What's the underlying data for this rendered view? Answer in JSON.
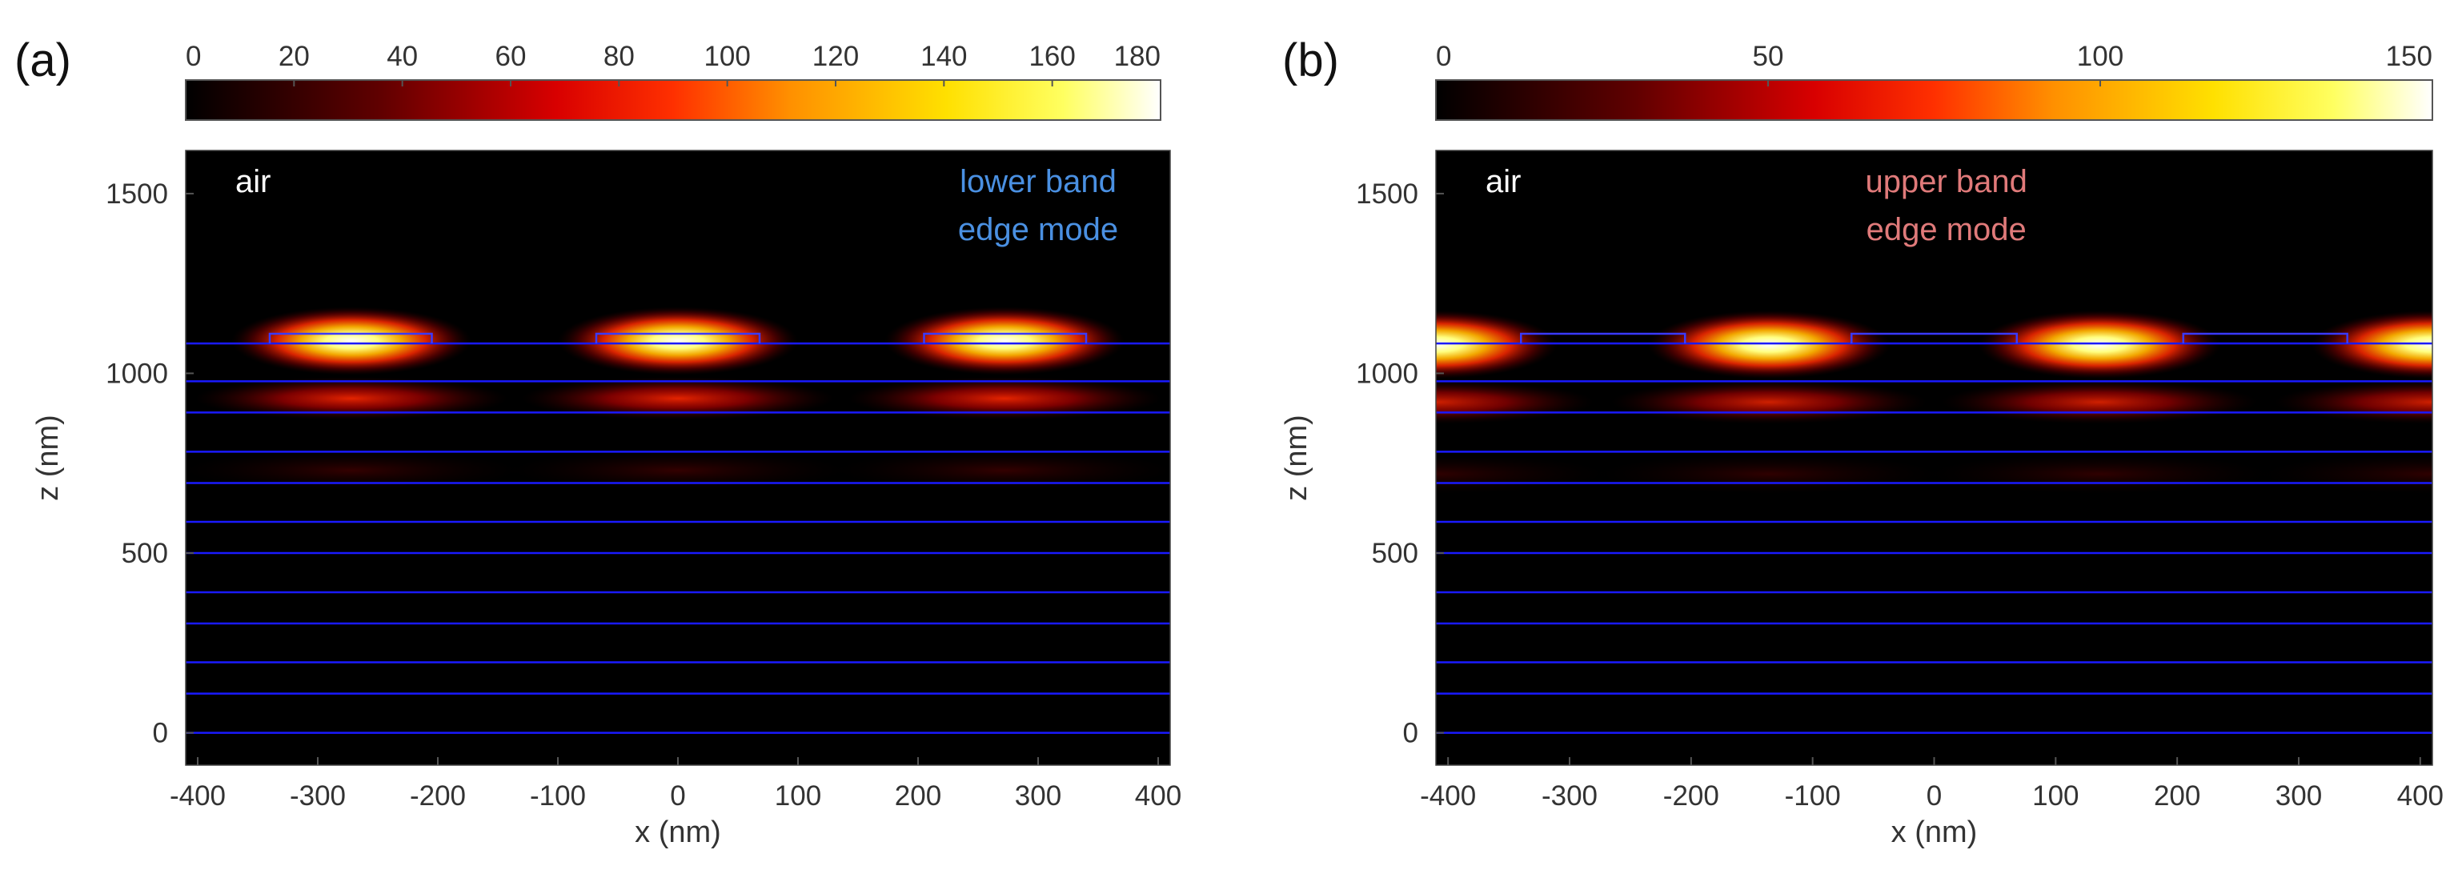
{
  "chart_data": [
    {
      "type": "heatmap",
      "panel_label": "(a)",
      "colorbar": {
        "ticks": [
          "0",
          "20",
          "40",
          "60",
          "80",
          "100",
          "120",
          "140",
          "160",
          "180"
        ],
        "min": 0,
        "max": 180,
        "colormap": "hot"
      },
      "xlabel": "x (nm)",
      "ylabel": "z (nm)",
      "xlim": [
        -410,
        410
      ],
      "ylim": [
        -90,
        1620
      ],
      "x_ticks": [
        "-400",
        "-300",
        "-200",
        "-100",
        "0",
        "100",
        "200",
        "300",
        "400"
      ],
      "y_ticks": [
        "0",
        "500",
        "1000",
        "1500"
      ],
      "annotations": {
        "medium": "air",
        "mode_line1": "lower band",
        "mode_line2": "edge mode",
        "mode_color": "#4a90e2"
      },
      "layer_interfaces_nm": [
        1083,
        978,
        891,
        782,
        695,
        587,
        500,
        391,
        304,
        196,
        109,
        0
      ],
      "grating_teeth_x_nm": [
        [
          -340,
          -205
        ],
        [
          -68,
          68
        ],
        [
          205,
          340
        ]
      ],
      "grating_top_nm": 1110,
      "field_hotspots": [
        {
          "x": -272,
          "z": 1090,
          "amplitude": 180
        },
        {
          "x": 0,
          "z": 1090,
          "amplitude": 180
        },
        {
          "x": 272,
          "z": 1090,
          "amplitude": 180
        },
        {
          "x": -272,
          "z": 930,
          "amplitude": 95
        },
        {
          "x": 0,
          "z": 930,
          "amplitude": 95
        },
        {
          "x": 272,
          "z": 930,
          "amplitude": 95
        },
        {
          "x": -272,
          "z": 730,
          "amplitude": 35
        },
        {
          "x": 0,
          "z": 730,
          "amplitude": 35
        },
        {
          "x": 272,
          "z": 730,
          "amplitude": 35
        }
      ]
    },
    {
      "type": "heatmap",
      "panel_label": "(b)",
      "colorbar": {
        "ticks": [
          "0",
          "50",
          "100",
          "150"
        ],
        "min": 0,
        "max": 150,
        "colormap": "hot"
      },
      "xlabel": "x (nm)",
      "ylabel": "z (nm)",
      "xlim": [
        -410,
        410
      ],
      "ylim": [
        -90,
        1620
      ],
      "x_ticks": [
        "-400",
        "-300",
        "-200",
        "-100",
        "0",
        "100",
        "200",
        "300",
        "400"
      ],
      "y_ticks": [
        "0",
        "500",
        "1000",
        "1500"
      ],
      "annotations": {
        "medium": "air",
        "mode_line1": "upper band",
        "mode_line2": "edge mode",
        "mode_color": "#e07a7a"
      },
      "layer_interfaces_nm": [
        1083,
        978,
        891,
        782,
        695,
        587,
        500,
        391,
        304,
        196,
        109,
        0
      ],
      "grating_teeth_x_nm": [
        [
          -340,
          -205
        ],
        [
          -68,
          68
        ],
        [
          205,
          340
        ]
      ],
      "grating_top_nm": 1110,
      "field_hotspots": [
        {
          "x": -410,
          "z": 1080,
          "amplitude": 150
        },
        {
          "x": -136,
          "z": 1080,
          "amplitude": 150
        },
        {
          "x": 136,
          "z": 1080,
          "amplitude": 150
        },
        {
          "x": 410,
          "z": 1080,
          "amplitude": 150
        },
        {
          "x": -410,
          "z": 920,
          "amplitude": 70
        },
        {
          "x": -136,
          "z": 920,
          "amplitude": 70
        },
        {
          "x": 136,
          "z": 920,
          "amplitude": 70
        },
        {
          "x": 410,
          "z": 920,
          "amplitude": 70
        },
        {
          "x": -410,
          "z": 720,
          "amplitude": 25
        },
        {
          "x": -136,
          "z": 720,
          "amplitude": 25
        },
        {
          "x": 136,
          "z": 720,
          "amplitude": 25
        },
        {
          "x": 410,
          "z": 720,
          "amplitude": 25
        }
      ]
    }
  ]
}
